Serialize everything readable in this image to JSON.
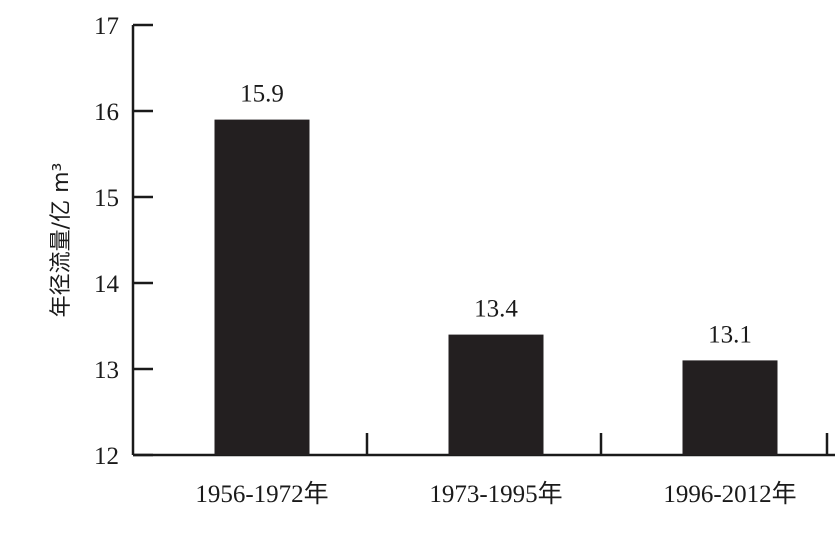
{
  "chart_data": {
    "type": "bar",
    "categories": [
      "1956-1972年",
      "1973-1995年",
      "1996-2012年"
    ],
    "values": [
      15.9,
      13.4,
      13.1
    ],
    "data_labels": [
      "15.9",
      "13.4",
      "13.1"
    ],
    "title": "",
    "xlabel": "",
    "ylabel": "年径流量/亿 m³",
    "ylim": [
      12,
      17
    ],
    "yticks": [
      "12",
      "13",
      "14",
      "15",
      "16",
      "17"
    ],
    "grid": false,
    "legend": "none",
    "bar_color": "#231f20"
  }
}
